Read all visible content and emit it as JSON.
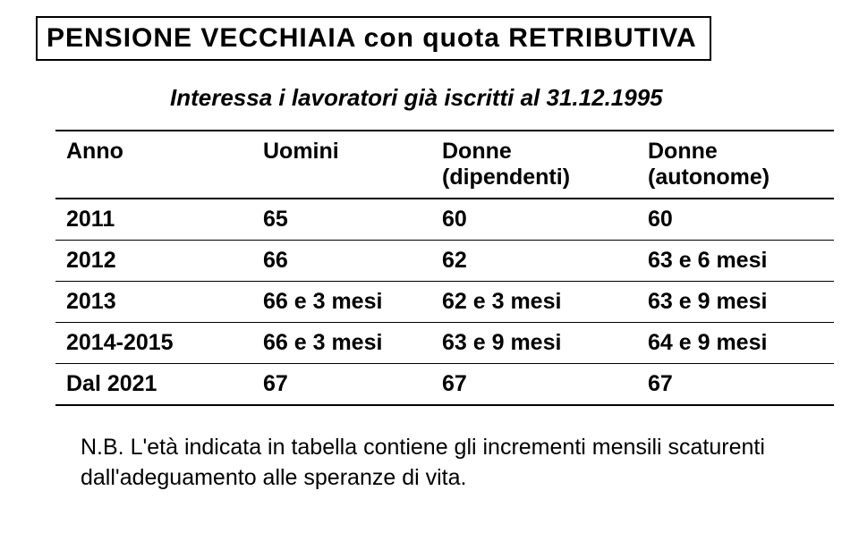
{
  "title": "PENSIONE  VECCHIAIA con quota RETRIBUTIVA",
  "subtitle": "Interessa i lavoratori già iscritti  al 31.12.1995",
  "title_fontsize": 30,
  "subtitle_fontsize": 26,
  "table": {
    "columns": [
      {
        "line1": "Anno",
        "line2": ""
      },
      {
        "line1": "Uomini",
        "line2": ""
      },
      {
        "line1": "Donne",
        "line2": "(dipendenti)"
      },
      {
        "line1": "Donne",
        "line2": "(autonome)"
      }
    ],
    "rows": [
      [
        "2011",
        "65",
        "60",
        "60"
      ],
      [
        "2012",
        "66",
        "62",
        "63 e 6 mesi"
      ],
      [
        "2013",
        "66 e 3 mesi",
        "62 e 3 mesi",
        "63 e 9 mesi"
      ],
      [
        "2014-2015",
        "66 e 3 mesi",
        "63 e 9 mesi",
        "64 e 9 mesi"
      ],
      [
        "Dal 2021",
        "67",
        "67",
        "67"
      ]
    ],
    "cell_fontsize": 25,
    "border_color": "#000000"
  },
  "note": "N.B. L'età indicata in tabella contiene gli  incrementi mensili scaturenti dall'adeguamento alle speranze di vita.",
  "note_fontsize": 25,
  "colors": {
    "text": "#000000",
    "background": "#ffffff",
    "border": "#000000"
  }
}
